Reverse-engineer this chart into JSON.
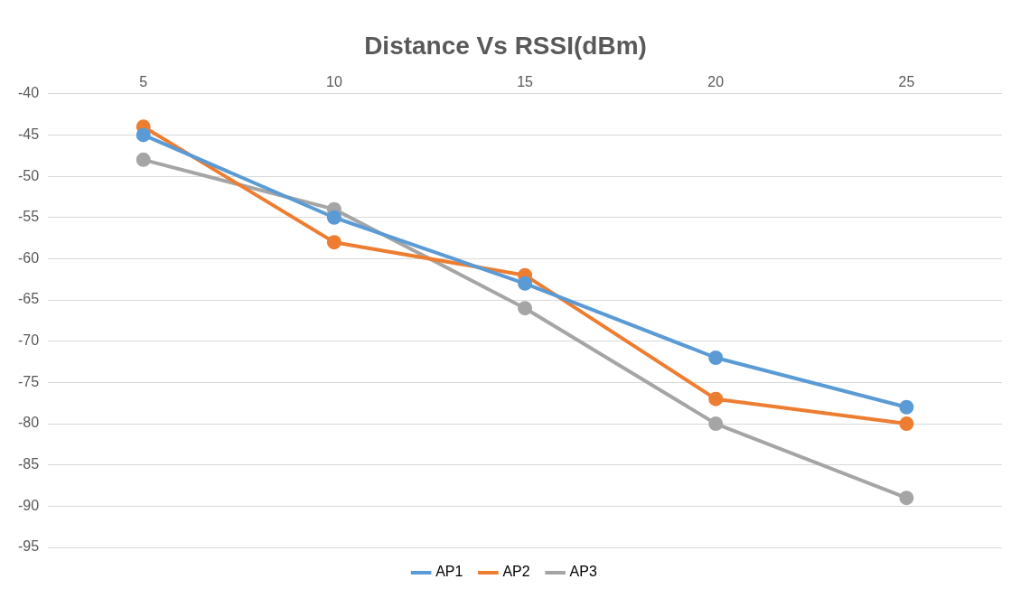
{
  "chart_data": {
    "type": "line",
    "title": "Distance Vs RSSI(dBm)",
    "categories": [
      "5",
      "10",
      "15",
      "20",
      "25"
    ],
    "series": [
      {
        "name": "AP1",
        "color": "#5b9bd5",
        "values": [
          -45,
          -55,
          -63,
          -72,
          -78
        ]
      },
      {
        "name": "AP2",
        "color": "#ed7d31",
        "values": [
          -44,
          -58,
          -62,
          -77,
          -80
        ]
      },
      {
        "name": "AP3",
        "color": "#a5a5a5",
        "values": [
          -48,
          -54,
          -66,
          -80,
          -89
        ]
      }
    ],
    "ylim": [
      -95,
      -40
    ],
    "yticks": [
      -95,
      -90,
      -85,
      -80,
      -75,
      -70,
      -65,
      -60,
      -55,
      -50,
      -45,
      -40
    ],
    "grid": "y",
    "legend": "bottom",
    "marker": "circle",
    "line_style": "solid"
  }
}
